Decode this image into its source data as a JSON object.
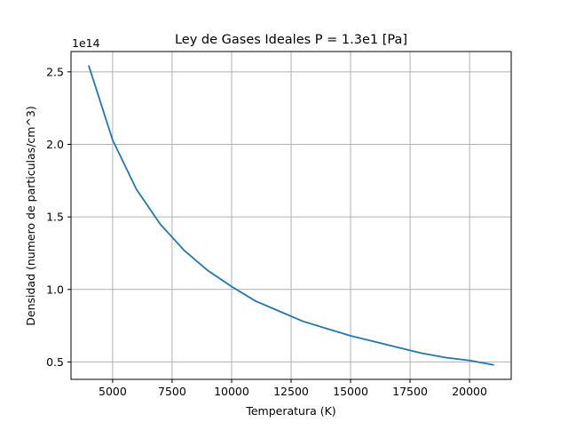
{
  "chart_data": {
    "type": "line",
    "title": "Ley de Gases Ideales P = 1.3e1 [Pa]",
    "xlabel": "Temperatura (K)",
    "ylabel": "Densidad (numero de particulas/cm^3)",
    "y_offset_label": "1e14",
    "xlim": [
      3250,
      21750
    ],
    "ylim": [
      0.38,
      2.64
    ],
    "y_scale_factor": 100000000000000.0,
    "grid": true,
    "x_ticks": [
      5000,
      7500,
      10000,
      12500,
      15000,
      17500,
      20000
    ],
    "y_ticks": [
      0.5,
      1.0,
      1.5,
      2.0,
      2.5
    ],
    "x_tick_labels": [
      "5000",
      "7500",
      "10000",
      "12500",
      "15000",
      "17500",
      "20000"
    ],
    "y_tick_labels": [
      "0.5",
      "1.0",
      "1.5",
      "2.0",
      "2.5"
    ],
    "series": [
      {
        "color": "#1f77b4",
        "x": [
          4000,
          5000,
          6000,
          7000,
          8000,
          9000,
          10000,
          11000,
          12000,
          13000,
          14000,
          15000,
          16000,
          17000,
          18000,
          19000,
          20000,
          21000
        ],
        "y": [
          2.54,
          2.03,
          1.69,
          1.45,
          1.27,
          1.13,
          1.02,
          0.92,
          0.85,
          0.78,
          0.73,
          0.68,
          0.64,
          0.6,
          0.56,
          0.53,
          0.51,
          0.48
        ]
      }
    ]
  }
}
